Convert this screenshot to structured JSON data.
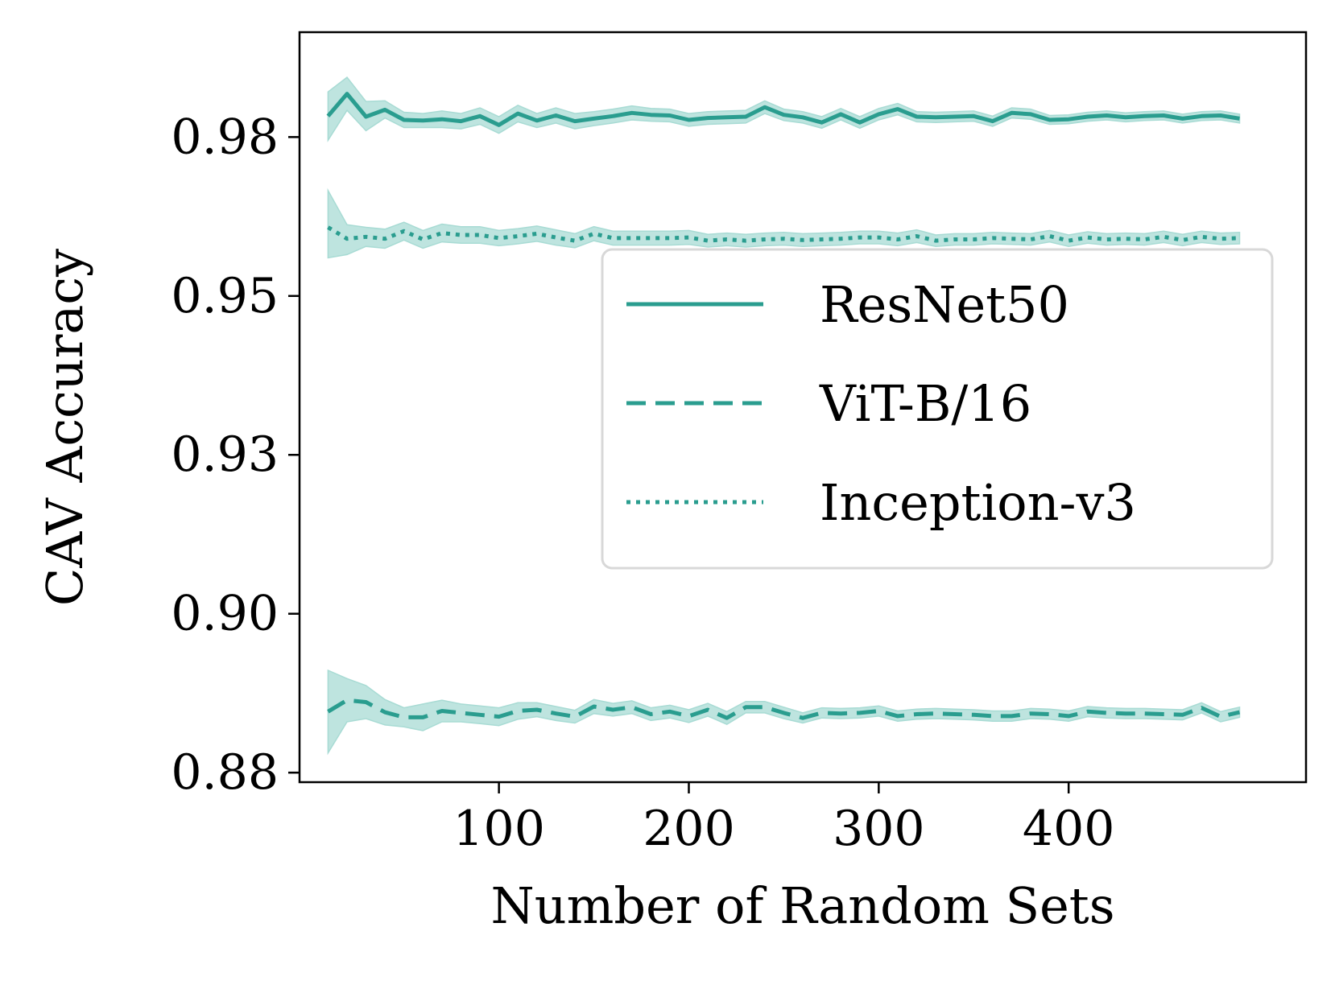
{
  "chart_data": {
    "type": "line",
    "title": "",
    "xlabel": "Number of Random Sets",
    "ylabel": "CAV Accuracy",
    "xlim": [
      -5,
      525
    ],
    "ylim": [
      0.8785,
      0.9965
    ],
    "xticks": [
      100,
      200,
      300,
      400
    ],
    "xtick_labels": [
      "100",
      "200",
      "300",
      "400"
    ],
    "yticks": [
      0.88,
      0.905,
      0.93,
      0.955,
      0.98
    ],
    "ytick_labels": [
      "0.88",
      "0.90",
      "0.93",
      "0.95",
      "0.98"
    ],
    "grid": false,
    "legend_position": "center-right",
    "color": "#2a9d8f",
    "band_color": "#a8dbd4",
    "x": [
      10,
      20,
      30,
      40,
      50,
      60,
      70,
      80,
      90,
      100,
      110,
      120,
      130,
      140,
      150,
      160,
      170,
      180,
      190,
      200,
      210,
      220,
      230,
      240,
      250,
      260,
      270,
      280,
      290,
      300,
      310,
      320,
      330,
      340,
      350,
      360,
      370,
      380,
      390,
      400,
      410,
      420,
      430,
      440,
      450,
      460,
      470,
      480,
      490
    ],
    "series": [
      {
        "name": "ResNet50",
        "style": "solid",
        "values": [
          0.9833,
          0.9868,
          0.9832,
          0.9843,
          0.9827,
          0.9826,
          0.9828,
          0.9825,
          0.9833,
          0.9819,
          0.9837,
          0.9826,
          0.9834,
          0.9825,
          0.9829,
          0.9833,
          0.9838,
          0.9835,
          0.9834,
          0.9827,
          0.983,
          0.9831,
          0.9832,
          0.9847,
          0.9835,
          0.9831,
          0.9823,
          0.9836,
          0.9823,
          0.9836,
          0.9844,
          0.9832,
          0.9831,
          0.9832,
          0.9833,
          0.9825,
          0.9838,
          0.9836,
          0.9827,
          0.9828,
          0.9832,
          0.9834,
          0.9831,
          0.9833,
          0.9834,
          0.9829,
          0.9833,
          0.9834,
          0.9829
        ],
        "lower": [
          0.9795,
          0.9842,
          0.981,
          0.983,
          0.9815,
          0.9815,
          0.9815,
          0.9813,
          0.982,
          0.9806,
          0.9824,
          0.9815,
          0.9822,
          0.9813,
          0.9818,
          0.9822,
          0.9827,
          0.9825,
          0.9824,
          0.9817,
          0.982,
          0.9821,
          0.9822,
          0.9837,
          0.9826,
          0.9822,
          0.9814,
          0.9827,
          0.9814,
          0.9827,
          0.9835,
          0.9824,
          0.9823,
          0.9824,
          0.9825,
          0.9817,
          0.983,
          0.9828,
          0.982,
          0.9821,
          0.9825,
          0.9827,
          0.9824,
          0.9826,
          0.9827,
          0.9822,
          0.9826,
          0.9827,
          0.9822
        ],
        "upper": [
          0.9871,
          0.9894,
          0.9856,
          0.9857,
          0.9839,
          0.9837,
          0.9841,
          0.9837,
          0.9846,
          0.9832,
          0.985,
          0.9837,
          0.9846,
          0.9837,
          0.984,
          0.9844,
          0.9849,
          0.9845,
          0.9844,
          0.9837,
          0.984,
          0.9841,
          0.9842,
          0.9857,
          0.9844,
          0.984,
          0.9832,
          0.9845,
          0.9832,
          0.9845,
          0.9853,
          0.984,
          0.9839,
          0.984,
          0.9841,
          0.9833,
          0.9846,
          0.9844,
          0.9834,
          0.9835,
          0.9839,
          0.9841,
          0.9838,
          0.984,
          0.9841,
          0.9836,
          0.984,
          0.9841,
          0.9836
        ]
      },
      {
        "name": "ViT-B/16",
        "style": "dashed",
        "values": [
          0.8896,
          0.8914,
          0.8911,
          0.8895,
          0.8887,
          0.8887,
          0.8897,
          0.8894,
          0.8891,
          0.8888,
          0.8897,
          0.8899,
          0.8893,
          0.8888,
          0.8904,
          0.8899,
          0.8903,
          0.8892,
          0.8896,
          0.8889,
          0.8899,
          0.8886,
          0.8903,
          0.8903,
          0.8894,
          0.8886,
          0.8894,
          0.8893,
          0.8894,
          0.8897,
          0.8889,
          0.8892,
          0.8893,
          0.8892,
          0.8891,
          0.8889,
          0.8889,
          0.8893,
          0.8892,
          0.8889,
          0.8896,
          0.8894,
          0.8893,
          0.8893,
          0.8892,
          0.8891,
          0.8902,
          0.8888,
          0.8895
        ],
        "lower": [
          0.8831,
          0.888,
          0.8885,
          0.8875,
          0.8872,
          0.8866,
          0.888,
          0.888,
          0.8877,
          0.8874,
          0.8884,
          0.8888,
          0.8882,
          0.8878,
          0.8893,
          0.8889,
          0.8893,
          0.8882,
          0.8886,
          0.8879,
          0.8889,
          0.8876,
          0.8894,
          0.8894,
          0.8885,
          0.8878,
          0.8886,
          0.8885,
          0.8886,
          0.8889,
          0.8881,
          0.8884,
          0.8885,
          0.8884,
          0.8883,
          0.8881,
          0.8881,
          0.8885,
          0.8884,
          0.8881,
          0.8888,
          0.8886,
          0.8885,
          0.8885,
          0.8884,
          0.8883,
          0.8894,
          0.888,
          0.8887
        ],
        "upper": [
          0.8961,
          0.8948,
          0.8937,
          0.8915,
          0.8902,
          0.8908,
          0.8914,
          0.8908,
          0.8905,
          0.8902,
          0.891,
          0.891,
          0.8904,
          0.8898,
          0.8915,
          0.8909,
          0.8913,
          0.8902,
          0.8906,
          0.8899,
          0.8909,
          0.8896,
          0.8912,
          0.8912,
          0.8903,
          0.8894,
          0.8902,
          0.8901,
          0.8902,
          0.8905,
          0.8897,
          0.89,
          0.8901,
          0.89,
          0.8899,
          0.8897,
          0.8897,
          0.8901,
          0.89,
          0.8897,
          0.8904,
          0.8902,
          0.8901,
          0.8901,
          0.89,
          0.8899,
          0.891,
          0.8896,
          0.8903
        ]
      },
      {
        "name": "Inception-v3",
        "style": "dotted",
        "values": [
          0.9658,
          0.964,
          0.9643,
          0.964,
          0.9652,
          0.9639,
          0.9649,
          0.9646,
          0.9646,
          0.9641,
          0.9644,
          0.9648,
          0.9642,
          0.9637,
          0.9648,
          0.9641,
          0.9641,
          0.9641,
          0.9641,
          0.9642,
          0.9637,
          0.9639,
          0.9637,
          0.9639,
          0.964,
          0.9638,
          0.9639,
          0.964,
          0.9642,
          0.9642,
          0.9639,
          0.9644,
          0.9637,
          0.9639,
          0.9639,
          0.9641,
          0.964,
          0.9639,
          0.9644,
          0.9637,
          0.9642,
          0.9639,
          0.964,
          0.9639,
          0.9643,
          0.9638,
          0.9643,
          0.964,
          0.9641
        ],
        "lower": [
          0.961,
          0.9615,
          0.9628,
          0.9625,
          0.9638,
          0.9625,
          0.9635,
          0.9633,
          0.9633,
          0.9629,
          0.9632,
          0.9636,
          0.963,
          0.9626,
          0.9637,
          0.963,
          0.963,
          0.963,
          0.963,
          0.9631,
          0.9627,
          0.9629,
          0.9627,
          0.9629,
          0.963,
          0.9628,
          0.9629,
          0.963,
          0.9632,
          0.9632,
          0.9629,
          0.9634,
          0.9628,
          0.963,
          0.963,
          0.9632,
          0.9631,
          0.963,
          0.9635,
          0.9628,
          0.9633,
          0.963,
          0.9631,
          0.963,
          0.9634,
          0.9629,
          0.9634,
          0.9631,
          0.9632
        ],
        "upper": [
          0.9716,
          0.9662,
          0.9658,
          0.9655,
          0.9666,
          0.9653,
          0.9663,
          0.9659,
          0.9659,
          0.9653,
          0.9656,
          0.966,
          0.9654,
          0.9648,
          0.9659,
          0.9652,
          0.9652,
          0.9652,
          0.9652,
          0.9653,
          0.9647,
          0.9649,
          0.9647,
          0.9649,
          0.965,
          0.9648,
          0.9649,
          0.965,
          0.9652,
          0.9652,
          0.9649,
          0.9654,
          0.9646,
          0.9648,
          0.9648,
          0.965,
          0.9649,
          0.9648,
          0.9653,
          0.9646,
          0.9651,
          0.9648,
          0.9649,
          0.9648,
          0.9652,
          0.9647,
          0.9652,
          0.9649,
          0.965
        ]
      }
    ]
  }
}
